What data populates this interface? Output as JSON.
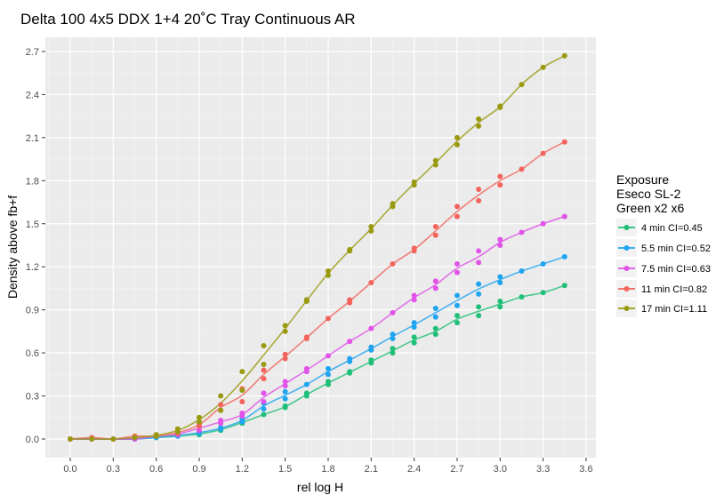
{
  "chart_data": {
    "type": "scatter",
    "title": "Delta 100 4x5 DDX 1+4 20˚C Tray Continuous AR",
    "xlabel": "rel log H",
    "ylabel": "Density above fb+f",
    "xlim": [
      -0.2,
      3.65
    ],
    "ylim": [
      -0.13,
      2.77
    ],
    "xticks": [
      "0.0",
      "0.3",
      "0.6",
      "0.9",
      "1.2",
      "1.5",
      "1.8",
      "2.1",
      "2.4",
      "2.7",
      "3.0",
      "3.3",
      "3.6"
    ],
    "yticks": [
      "0.0",
      "0.3",
      "0.6",
      "0.9",
      "1.2",
      "1.5",
      "1.8",
      "2.1",
      "2.4",
      "2.7"
    ],
    "grid": true,
    "legend_position": "right",
    "legend_title": [
      "Exposure",
      "Eseco SL-2",
      "Green x2 x6"
    ],
    "x": [
      0,
      0.15,
      0.3,
      0.45,
      0.6,
      0.75,
      0.9,
      1.05,
      1.2,
      1.35,
      1.5,
      1.65,
      1.8,
      1.95,
      2.1,
      2.25,
      2.4,
      2.55,
      2.7,
      2.85,
      3.0,
      3.15,
      3.3,
      3.45
    ],
    "series": [
      {
        "name": "4 min CI=0.45",
        "color": "#1fbf78",
        "y": [
          0,
          0,
          0,
          0,
          0.01,
          0.02,
          0.04,
          0.07,
          0.12,
          0.17,
          0.23,
          0.32,
          0.4,
          0.47,
          0.55,
          0.63,
          0.71,
          0.77,
          0.86,
          0.92,
          0.96,
          0.99,
          1.02,
          1.07
        ],
        "y2": [
          null,
          null,
          null,
          null,
          null,
          null,
          0.03,
          0.06,
          0.11,
          null,
          0.22,
          0.3,
          0.38,
          0.46,
          0.53,
          0.6,
          0.67,
          0.73,
          0.81,
          0.86,
          0.92,
          null,
          null,
          null
        ]
      },
      {
        "name": "5.5 min CI=0.52",
        "color": "#1fa4f0",
        "y": [
          0,
          0,
          0,
          0,
          0.01,
          0.03,
          0.05,
          0.08,
          0.14,
          0.25,
          0.33,
          0.38,
          0.49,
          0.56,
          0.64,
          0.73,
          0.81,
          0.91,
          1.0,
          1.08,
          1.13,
          1.17,
          1.22,
          1.27
        ],
        "y2": [
          null,
          null,
          null,
          null,
          null,
          0.02,
          0.04,
          0.07,
          0.12,
          0.21,
          0.28,
          null,
          0.45,
          0.54,
          0.62,
          0.7,
          0.78,
          0.85,
          0.93,
          1.01,
          1.09,
          null,
          null,
          null
        ]
      },
      {
        "name": "7.5 min CI=0.63",
        "color": "#e052e8",
        "y": [
          0,
          0,
          0,
          0,
          0.02,
          0.04,
          0.09,
          0.13,
          0.18,
          0.32,
          0.4,
          0.49,
          0.58,
          0.68,
          0.77,
          0.88,
          1.0,
          1.1,
          1.22,
          1.31,
          1.39,
          1.44,
          1.5,
          1.55
        ],
        "y2": [
          null,
          null,
          null,
          null,
          null,
          0.03,
          0.06,
          0.11,
          0.16,
          0.26,
          0.37,
          0.47,
          null,
          null,
          null,
          null,
          0.97,
          1.05,
          1.16,
          1.23,
          1.35,
          null,
          null,
          null
        ]
      },
      {
        "name": "11 min CI=0.82",
        "color": "#f2645c",
        "y": [
          0,
          0.01,
          0,
          0.02,
          0.02,
          0.05,
          0.11,
          0.24,
          0.35,
          0.48,
          0.59,
          0.71,
          0.84,
          0.97,
          1.09,
          1.22,
          1.33,
          1.48,
          1.62,
          1.74,
          1.83,
          1.88,
          1.99,
          2.07
        ],
        "y2": [
          null,
          null,
          null,
          null,
          null,
          0.04,
          0.09,
          0.2,
          0.26,
          0.42,
          0.56,
          0.7,
          null,
          0.95,
          null,
          null,
          1.31,
          1.42,
          1.55,
          1.66,
          1.77,
          null,
          null,
          null
        ]
      },
      {
        "name": "17 min CI=1.11",
        "color": "#9a9a10",
        "y": [
          0,
          0,
          0,
          0.01,
          0.03,
          0.07,
          0.15,
          0.3,
          0.47,
          0.65,
          0.79,
          0.97,
          1.17,
          1.32,
          1.48,
          1.64,
          1.79,
          1.94,
          2.1,
          2.23,
          2.32,
          2.47,
          2.59,
          2.67
        ],
        "y2": [
          null,
          null,
          null,
          null,
          0.02,
          0.05,
          0.12,
          0.2,
          0.34,
          0.52,
          0.75,
          0.96,
          1.14,
          1.31,
          1.45,
          1.62,
          1.77,
          1.91,
          2.05,
          2.18,
          2.31,
          null,
          null,
          null
        ]
      }
    ]
  }
}
